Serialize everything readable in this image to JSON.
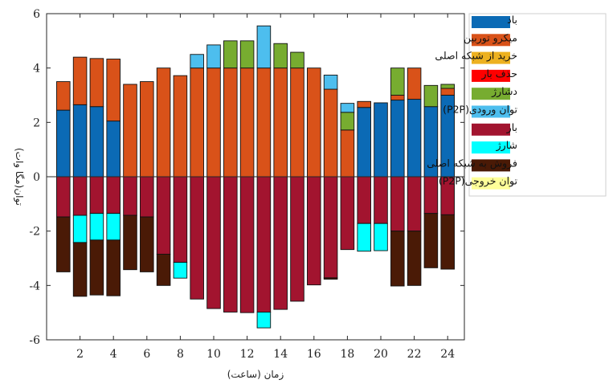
{
  "chart_data": {
    "type": "bar",
    "stacked": true,
    "title": "",
    "xlabel": "زمان (ساعت)",
    "ylabel": "توان(مگا وات)",
    "ylim": [
      -6,
      6
    ],
    "yticks": [
      -6,
      -4,
      -2,
      0,
      2,
      4,
      6
    ],
    "xticks": [
      2,
      4,
      6,
      8,
      10,
      12,
      14,
      16,
      18,
      20,
      22,
      24
    ],
    "xlim": [
      0,
      25
    ],
    "grid": false,
    "legend_position": "right",
    "categories": [
      1,
      2,
      3,
      4,
      5,
      6,
      7,
      8,
      9,
      10,
      11,
      12,
      13,
      14,
      15,
      16,
      17,
      18,
      19,
      20,
      21,
      22,
      23,
      24
    ],
    "positive_series": [
      {
        "name": "باد",
        "color": "#0b6ab5",
        "values": [
          2.45,
          2.65,
          2.58,
          2.05,
          0,
          0,
          0,
          0,
          0,
          0,
          0,
          0,
          0,
          0,
          0,
          0,
          0,
          0,
          2.55,
          2.72,
          2.82,
          2.85,
          2.58,
          3.0
        ]
      },
      {
        "name": "میکرو توربین",
        "color": "#d95219",
        "values": [
          1.05,
          1.75,
          1.77,
          2.28,
          3.4,
          3.5,
          4.0,
          3.72,
          4.0,
          4.0,
          4.0,
          4.0,
          4.0,
          4.0,
          4.0,
          4.0,
          3.22,
          1.72,
          0.22,
          0,
          0.18,
          1.15,
          0,
          0.25
        ]
      },
      {
        "name": "خرید از شبکه اصلی",
        "color": "#edb120",
        "values": [
          0,
          0,
          0,
          0,
          0,
          0,
          0,
          0,
          0,
          0,
          0,
          0,
          0,
          0,
          0,
          0,
          0,
          0,
          0,
          0,
          0,
          0,
          0,
          0
        ]
      },
      {
        "name": "حذف بار",
        "color": "#ff0000",
        "values": [
          0,
          0,
          0,
          0,
          0,
          0,
          0,
          0,
          0,
          0,
          0,
          0,
          0,
          0,
          0,
          0,
          0,
          0,
          0,
          0,
          0,
          0,
          0,
          0
        ]
      },
      {
        "name": "دشارژ",
        "color": "#77ac30",
        "values": [
          0,
          0,
          0,
          0,
          0,
          0,
          0,
          0,
          0,
          0,
          1.0,
          1.0,
          0,
          0.9,
          0.58,
          0,
          0,
          0.65,
          0,
          0,
          1.0,
          0,
          0.78,
          0.15
        ]
      },
      {
        "name": "توان ورودی(P2P)",
        "color": "#4dbeee",
        "values": [
          0,
          0,
          0,
          0,
          0,
          0,
          0,
          0,
          0.5,
          0.85,
          0,
          0,
          1.55,
          0,
          0,
          0,
          0.52,
          0.33,
          0,
          0,
          0,
          0,
          0,
          0
        ]
      }
    ],
    "negative_series": [
      {
        "name": "بار",
        "color": "#a2142f",
        "values": [
          -1.48,
          -1.42,
          -1.35,
          -1.35,
          -1.42,
          -1.48,
          -2.85,
          -3.15,
          -4.5,
          -4.85,
          -4.98,
          -5.0,
          -4.98,
          -4.88,
          -4.58,
          -3.98,
          -3.72,
          -2.68,
          -1.72,
          -1.72,
          -2.0,
          -2.0,
          -1.35,
          -1.4
        ]
      },
      {
        "name": "شارژ",
        "color": "#00ffff",
        "values": [
          0,
          -1.0,
          -0.98,
          -0.98,
          0,
          0,
          0,
          -0.58,
          0,
          0,
          0,
          0,
          -0.58,
          0,
          0,
          0,
          0,
          0,
          -1.02,
          -1.0,
          0,
          0,
          0,
          0
        ]
      },
      {
        "name": "فروش به شبکه اصلی",
        "color": "#4a1a06",
        "values": [
          -2.02,
          -1.98,
          -2.02,
          -2.05,
          -2.0,
          -2.02,
          -1.15,
          0,
          0,
          0,
          0,
          0,
          0,
          0,
          0,
          0,
          -0.05,
          0,
          0,
          0,
          -2.02,
          -2.0,
          -2.0,
          -2.0
        ]
      },
      {
        "name": "توان خروجی(P2P)",
        "color": "#ffff99",
        "values": [
          0,
          0,
          0,
          0,
          0,
          0,
          0,
          0,
          0,
          0,
          0,
          0,
          0,
          0,
          0,
          0,
          0,
          0,
          0,
          0,
          0,
          0,
          0,
          0
        ]
      }
    ],
    "legend_order": [
      "باد",
      "میکرو توربین",
      "خرید از شبکه اصلی",
      "حذف بار",
      "دشارژ",
      "توان ورودی(P2P)",
      "بار",
      "شارژ",
      "فروش به شبکه اصلی",
      "توان خروجی(P2P)"
    ]
  }
}
